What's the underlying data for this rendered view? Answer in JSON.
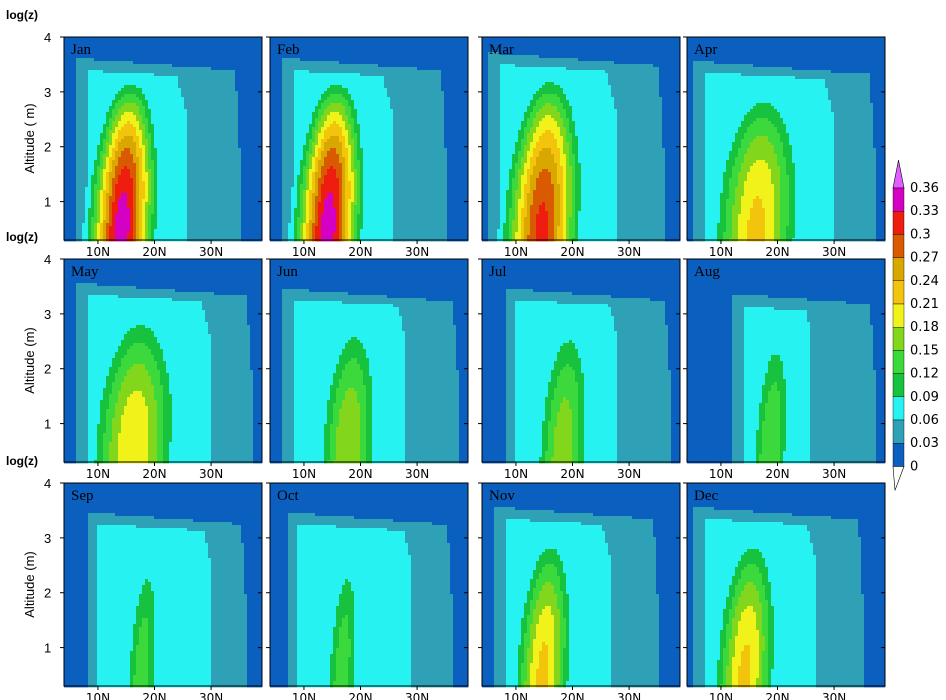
{
  "chart_data": {
    "type": "heatmap",
    "y_axis_label": "log(z)",
    "ylabel": "Altitude ( m)",
    "ylabel_other_rows": "Altitude  (m)",
    "x_ticks": [
      10,
      20,
      30
    ],
    "x_tick_labels": [
      "10N",
      "20N",
      "30N"
    ],
    "xlim": [
      4,
      39
    ],
    "y_ticks": [
      1,
      2,
      3,
      4
    ],
    "y_tick_labels": [
      "1",
      "2",
      "3",
      "4"
    ],
    "ylim": [
      0.3,
      4
    ],
    "colorbar": {
      "levels": [
        0,
        0.03,
        0.06,
        0.09,
        0.12,
        0.15,
        0.18,
        0.21,
        0.24,
        0.27,
        0.3,
        0.33,
        0.36
      ],
      "labels": [
        "0",
        "0.03",
        "0.06",
        "0.09",
        "0.12",
        "0.15",
        "0.18",
        "0.21",
        "0.24",
        "0.27",
        "0.3",
        "0.33",
        "0.36"
      ],
      "colors": [
        "#0a5fbf",
        "#2fa1b6",
        "#27f2f2",
        "#17c23f",
        "#3bd93b",
        "#82d61c",
        "#f2f21b",
        "#f2c40c",
        "#d9a800",
        "#d95a00",
        "#ef1d10",
        "#d400c4",
        "#e060ff"
      ]
    },
    "panels": [
      {
        "name": "Jan",
        "max": 0.35,
        "lat": 14.5,
        "latSpread": 6.5,
        "zTop": 3.35,
        "width": [
          8,
          26,
          35
        ],
        "tiltTop": 0.9
      },
      {
        "name": "Feb",
        "max": 0.35,
        "lat": 14.5,
        "latSpread": 6.5,
        "zTop": 3.35,
        "width": [
          8,
          26,
          35
        ],
        "tiltTop": 0.9
      },
      {
        "name": "Mar",
        "max": 0.31,
        "lat": 14.8,
        "latSpread": 7.5,
        "zTop": 3.45,
        "width": [
          7,
          28,
          36
        ],
        "tiltTop": 0.8
      },
      {
        "name": "Apr",
        "max": 0.22,
        "lat": 16.5,
        "latSpread": 9,
        "zTop": 3.3,
        "width": [
          7,
          30,
          37
        ],
        "tiltTop": 0.8
      },
      {
        "name": "May",
        "max": 0.21,
        "lat": 16.5,
        "latSpread": 9,
        "zTop": 3.3,
        "width": [
          8,
          30,
          37
        ],
        "tiltTop": 0.8
      },
      {
        "name": "Jun",
        "max": 0.18,
        "lat": 18,
        "latSpread": 6.5,
        "zTop": 3.2,
        "width": [
          8,
          28,
          37
        ],
        "tiltTop": 0.7
      },
      {
        "name": "Jul",
        "max": 0.17,
        "lat": 18.5,
        "latSpread": 6,
        "zTop": 3.2,
        "width": [
          10,
          28,
          37
        ],
        "tiltTop": 0.7
      },
      {
        "name": "Aug",
        "max": 0.15,
        "lat": 19,
        "latSpread": 4.5,
        "zTop": 3.1,
        "width": [
          14,
          26,
          37
        ],
        "tiltTop": 0.5
      },
      {
        "name": "Sep",
        "max": 0.14,
        "lat": 18,
        "latSpread": 4,
        "zTop": 3.2,
        "width": [
          10,
          30,
          36
        ],
        "tiltTop": 0.7
      },
      {
        "name": "Oct",
        "max": 0.14,
        "lat": 17,
        "latSpread": 4,
        "zTop": 3.2,
        "width": [
          9,
          29,
          36
        ],
        "tiltTop": 0.7
      },
      {
        "name": "Nov",
        "max": 0.22,
        "lat": 15,
        "latSpread": 6,
        "zTop": 3.3,
        "width": [
          8,
          27,
          35
        ],
        "tiltTop": 0.8
      },
      {
        "name": "Dec",
        "max": 0.22,
        "lat": 14.5,
        "latSpread": 6.5,
        "zTop": 3.3,
        "width": [
          7,
          27,
          35
        ],
        "tiltTop": 0.8
      }
    ]
  }
}
